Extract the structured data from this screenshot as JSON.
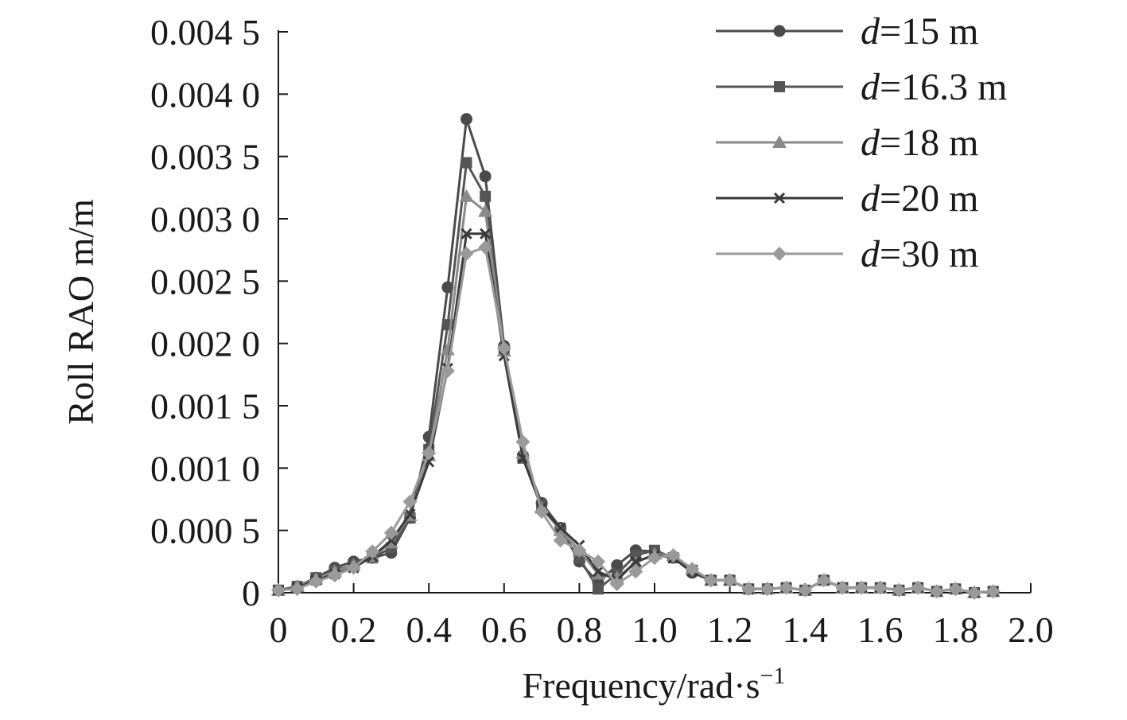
{
  "chart_data": {
    "type": "line",
    "xlabel": "Frequency/rad·s",
    "xlabel_sup": "−1",
    "ylabel": "Roll RAO m/m",
    "xlim": [
      0,
      2.0
    ],
    "ylim": [
      0,
      0.0045
    ],
    "x_ticks": [
      0,
      0.2,
      0.4,
      0.6,
      0.8,
      1.0,
      1.2,
      1.4,
      1.6,
      1.8,
      2.0
    ],
    "x_tick_labels": [
      "0",
      "0.2",
      "0.4",
      "0.6",
      "0.8",
      "1.0",
      "1.2",
      "1.4",
      "1.6",
      "1.8",
      "2.0"
    ],
    "y_ticks": [
      0,
      0.0005,
      0.001,
      0.0015,
      0.002,
      0.0025,
      0.003,
      0.0035,
      0.004,
      0.0045
    ],
    "y_tick_labels": [
      "0",
      "0.000 5",
      "0.001 0",
      "0.001 5",
      "0.002 0",
      "0.002 5",
      "0.003 0",
      "0.003 5",
      "0.004 0",
      "0.004 5"
    ],
    "grid": false,
    "legend_position": "top-right",
    "x": [
      0,
      0.05,
      0.1,
      0.15,
      0.2,
      0.25,
      0.3,
      0.35,
      0.4,
      0.45,
      0.5,
      0.55,
      0.6,
      0.65,
      0.7,
      0.75,
      0.8,
      0.85,
      0.9,
      0.95,
      1.0,
      1.05,
      1.1,
      1.15,
      1.2,
      1.25,
      1.3,
      1.35,
      1.4,
      1.45,
      1.5,
      1.55,
      1.6,
      1.65,
      1.7,
      1.75,
      1.8,
      1.85,
      1.9
    ],
    "series": [
      {
        "name_italic": "d",
        "name_rest": "=15 m",
        "marker": "circle",
        "color": "#4a4a4a",
        "values": [
          2e-05,
          5e-05,
          0.00012,
          0.0002,
          0.00025,
          0.00028,
          0.00032,
          0.0006,
          0.00125,
          0.00245,
          0.0038,
          0.00334,
          0.00198,
          0.0011,
          0.00072,
          0.00052,
          0.00025,
          8e-05,
          0.00022,
          0.00034,
          0.00033,
          0.00028,
          0.00016,
          0.0001,
          0.0001,
          3e-05,
          3e-05,
          4e-05,
          2e-05,
          0.0001,
          4e-05,
          4e-05,
          4e-05,
          2e-05,
          4e-05,
          1e-05,
          3e-05,
          0.0,
          1e-05
        ]
      },
      {
        "name_italic": "d",
        "name_rest": "=16.3 m",
        "marker": "square",
        "color": "#555555",
        "values": [
          2e-05,
          5e-05,
          0.00012,
          0.00018,
          0.00022,
          0.00028,
          0.00036,
          0.0006,
          0.00115,
          0.00215,
          0.00345,
          0.00318,
          0.00195,
          0.00108,
          0.0007,
          0.0005,
          0.00028,
          3e-05,
          0.00015,
          0.0003,
          0.00034,
          0.00028,
          0.00018,
          0.0001,
          0.0001,
          3e-05,
          3e-05,
          4e-05,
          2e-05,
          0.0001,
          4e-05,
          4e-05,
          4e-05,
          2e-05,
          4e-05,
          1e-05,
          3e-05,
          0.0,
          1e-05
        ]
      },
      {
        "name_italic": "d",
        "name_rest": "=18 m",
        "marker": "triangle",
        "color": "#8a8a8a",
        "values": [
          2e-05,
          5e-05,
          0.00011,
          0.00017,
          0.00022,
          0.00029,
          0.0004,
          0.00062,
          0.0011,
          0.00195,
          0.00318,
          0.00306,
          0.00194,
          0.00112,
          0.00068,
          0.0005,
          0.00034,
          0.00015,
          0.00012,
          0.00024,
          0.00031,
          0.0003,
          0.00019,
          0.0001,
          0.0001,
          3e-05,
          3e-05,
          4e-05,
          2e-05,
          0.0001,
          4e-05,
          4e-05,
          4e-05,
          2e-05,
          4e-05,
          1e-05,
          3e-05,
          0.0,
          1e-05
        ]
      },
      {
        "name_italic": "d",
        "name_rest": "=20 m",
        "marker": "x",
        "color": "#3a3a3a",
        "values": [
          2e-05,
          4e-05,
          0.0001,
          0.00015,
          0.0002,
          0.00029,
          0.00042,
          0.00063,
          0.00105,
          0.0018,
          0.00288,
          0.00288,
          0.0019,
          0.00108,
          0.00068,
          0.00052,
          0.00038,
          0.00017,
          0.0001,
          0.00025,
          0.0003,
          0.00028,
          0.00017,
          0.0001,
          0.0001,
          3e-05,
          3e-05,
          4e-05,
          2e-05,
          0.0001,
          4e-05,
          4e-05,
          4e-05,
          2e-05,
          4e-05,
          1e-05,
          3e-05,
          0.0,
          1e-05
        ]
      },
      {
        "name_italic": "d",
        "name_rest": "=30 m",
        "marker": "diamond",
        "color": "#9a9a9a",
        "values": [
          2e-05,
          3e-05,
          9e-05,
          0.00014,
          0.0002,
          0.00033,
          0.00048,
          0.00073,
          0.00112,
          0.00178,
          0.00272,
          0.00277,
          0.00196,
          0.00121,
          0.00065,
          0.00042,
          0.00034,
          0.00025,
          7e-05,
          0.00017,
          0.00028,
          0.0003,
          0.00019,
          0.0001,
          0.0001,
          3e-05,
          3e-05,
          4e-05,
          2e-05,
          0.0001,
          4e-05,
          4e-05,
          4e-05,
          2e-05,
          4e-05,
          1e-05,
          3e-05,
          0.0,
          1e-05
        ]
      }
    ]
  }
}
